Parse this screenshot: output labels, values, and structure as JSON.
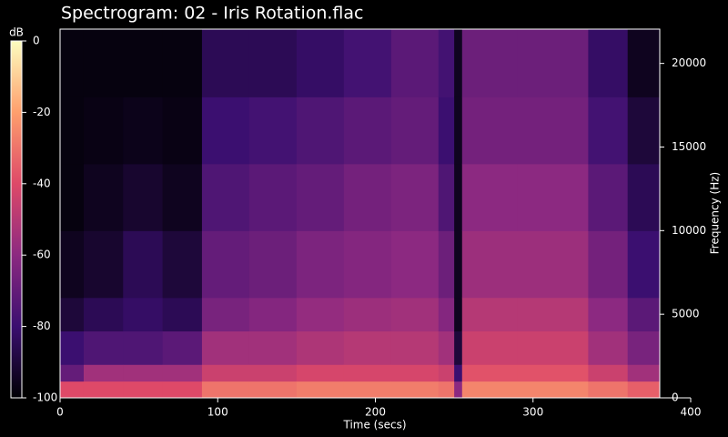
{
  "chart_data": {
    "type": "spectrogram",
    "title": "Spectrogram: 02 - Iris Rotation.flac",
    "xlabel": "Time (secs)",
    "ylabel": "Frequency (Hz)",
    "xlim": [
      0,
      400
    ],
    "xticks": [
      0,
      100,
      200,
      300,
      400
    ],
    "ylim": [
      0,
      22050
    ],
    "yticks": [
      0,
      5000,
      10000,
      15000,
      20000
    ],
    "time_bins": [
      0,
      15,
      40,
      65,
      90,
      120,
      150,
      180,
      210,
      240,
      250,
      255,
      290,
      335,
      360,
      380
    ],
    "freq_bins": [
      0,
      1000,
      2000,
      4000,
      6000,
      10000,
      14000,
      18000,
      22050
    ],
    "values": [
      [
        -40,
        -70,
        -80,
        -90,
        -95,
        -98,
        -98,
        -98
      ],
      [
        -40,
        -55,
        -75,
        -85,
        -92,
        -95,
        -97,
        -98
      ],
      [
        -40,
        -55,
        -75,
        -82,
        -85,
        -92,
        -96,
        -98
      ],
      [
        -40,
        -55,
        -72,
        -85,
        -90,
        -95,
        -97,
        -98
      ],
      [
        -30,
        -45,
        -55,
        -65,
        -70,
        -75,
        -80,
        -85
      ],
      [
        -30,
        -45,
        -55,
        -62,
        -68,
        -72,
        -78,
        -85
      ],
      [
        -28,
        -42,
        -52,
        -58,
        -64,
        -70,
        -75,
        -82
      ],
      [
        -28,
        -42,
        -50,
        -56,
        -62,
        -66,
        -72,
        -78
      ],
      [
        -28,
        -42,
        -50,
        -55,
        -60,
        -64,
        -70,
        -72
      ],
      [
        -30,
        -45,
        -55,
        -62,
        -68,
        -75,
        -80,
        -78
      ],
      [
        -60,
        -80,
        -90,
        -95,
        -95,
        -95,
        -95,
        -95
      ],
      [
        -26,
        -38,
        -45,
        -50,
        -56,
        -60,
        -66,
        -68
      ],
      [
        -26,
        -38,
        -45,
        -50,
        -56,
        -60,
        -66,
        -68
      ],
      [
        -30,
        -45,
        -55,
        -60,
        -66,
        -72,
        -78,
        -82
      ],
      [
        -35,
        -55,
        -65,
        -72,
        -80,
        -85,
        -90,
        -95
      ]
    ],
    "colormap": [
      "#000004",
      "#3b0f70",
      "#8c2981",
      "#de4968",
      "#fe9f6d",
      "#fcfdbf"
    ],
    "colorbar": {
      "label": "dB",
      "lim": [
        -100,
        0
      ],
      "ticks": [
        0,
        -20,
        -40,
        -60,
        -80,
        -100
      ]
    }
  }
}
